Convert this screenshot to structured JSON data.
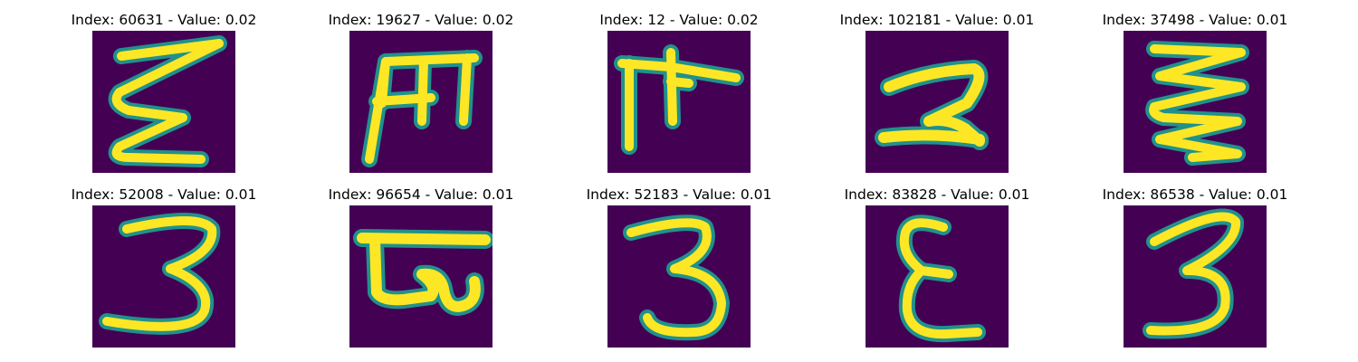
{
  "panels": [
    {
      "title": "Index: 60631 - Value: 0.02",
      "glyph": "sigma-like-zigzag"
    },
    {
      "title": "Index: 19627 - Value: 0.02",
      "glyph": "m-like-frame"
    },
    {
      "title": "Index: 12 - Value: 0.02",
      "glyph": "pi-like-cross"
    },
    {
      "title": "Index: 102181 - Value: 0.01",
      "glyph": "two-like-curve"
    },
    {
      "title": "Index: 37498 - Value: 0.01",
      "glyph": "triple-zigzag"
    },
    {
      "title": "Index: 52008 - Value: 0.01",
      "glyph": "three-like"
    },
    {
      "title": "Index: 96654 - Value: 0.01",
      "glyph": "bar-with-loop"
    },
    {
      "title": "Index: 52183 - Value: 0.01",
      "glyph": "three-like"
    },
    {
      "title": "Index: 83828 - Value: 0.01",
      "glyph": "epsilon-like"
    },
    {
      "title": "Index: 86538 - Value: 0.01",
      "glyph": "three-like"
    }
  ],
  "colors": {
    "background": "#440154",
    "edge": "#21918c",
    "stroke": "#fde725"
  }
}
